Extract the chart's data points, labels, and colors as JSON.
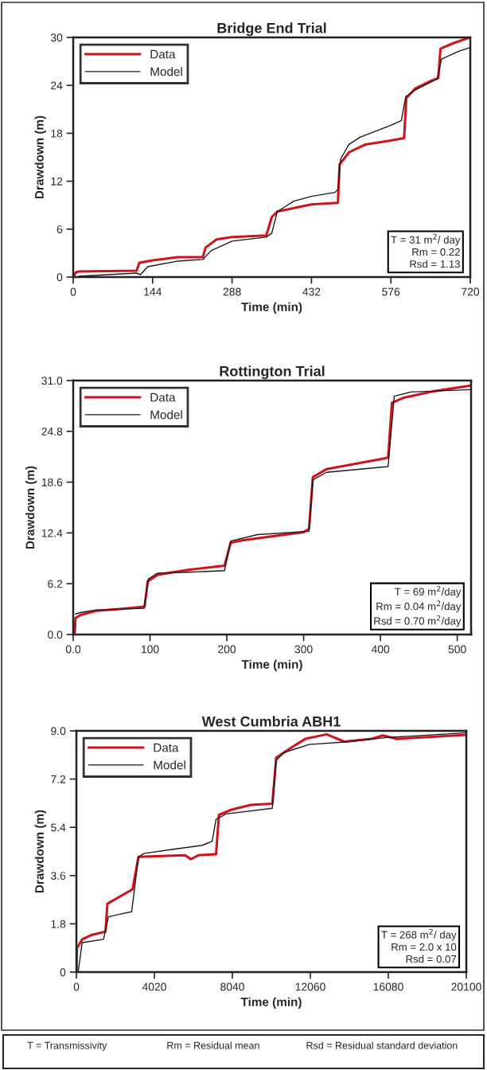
{
  "chart_data": [
    {
      "type": "line",
      "title": "Bridge End Trial",
      "xlabel": "Time (min)",
      "ylabel": "Drawdown (m)",
      "xlim": [
        0,
        720
      ],
      "xticks": [
        0,
        144,
        288,
        432,
        576,
        720
      ],
      "ylim": [
        0,
        30
      ],
      "yticks": [
        0,
        6,
        12,
        18,
        24,
        30
      ],
      "grid": false,
      "legend": "top left",
      "annotations": [
        "T = 31 m$^{2}$/ day",
        "Rm = 0.22",
        "Rsd = 1.13"
      ],
      "series": [
        {
          "name": "Data",
          "color": "#d0121b",
          "x": [
            0,
            5,
            10,
            115,
            120,
            144,
            190,
            235,
            240,
            260,
            288,
            350,
            360,
            370,
            432,
            480,
            483,
            500,
            530,
            576,
            600,
            604,
            620,
            650,
            662,
            666,
            690,
            720
          ],
          "values": [
            0,
            0.6,
            0.7,
            0.8,
            1.8,
            2.1,
            2.5,
            2.5,
            3.7,
            4.7,
            5.0,
            5.2,
            7.5,
            8.2,
            9.1,
            9.3,
            14.1,
            15.6,
            16.6,
            17.1,
            17.4,
            22.4,
            23.6,
            24.6,
            24.9,
            28.6,
            29.3,
            30.0
          ]
        },
        {
          "name": "Model",
          "color": "#1a1a1a",
          "x": [
            10,
            115,
            122,
            135,
            190,
            235,
            250,
            288,
            350,
            360,
            370,
            400,
            432,
            475,
            480,
            485,
            500,
            520,
            576,
            595,
            603,
            620,
            660,
            668,
            700,
            718
          ],
          "values": [
            0.1,
            0.5,
            0.3,
            1.3,
            2.0,
            2.2,
            3.3,
            4.5,
            5.0,
            5.5,
            8.2,
            9.5,
            10.1,
            10.6,
            11.0,
            14.8,
            16.6,
            17.5,
            19.0,
            19.6,
            22.6,
            23.4,
            24.8,
            27.3,
            28.3,
            28.7
          ]
        }
      ]
    },
    {
      "type": "line",
      "title": "Rottington Trial",
      "xlabel": "Time (min)",
      "ylabel": "Drawdown (m)",
      "xlim": [
        0,
        518
      ],
      "xticks": [
        {
          "value": 0,
          "label": "0.0"
        },
        100,
        200,
        300,
        400,
        500
      ],
      "ylim": [
        0,
        31
      ],
      "yticks": [
        {
          "value": 0,
          "label": "0.0"
        },
        6.2,
        12.4,
        18.6,
        24.8,
        {
          "value": 31,
          "label": "31.0"
        }
      ],
      "grid": false,
      "legend": "top left",
      "annotations": [
        "T = 69 m$^{2}$/day",
        "Rm = 0.04 m$^{2}$/day",
        "Rsd = 0.70 m$^{2}$/day"
      ],
      "series": [
        {
          "name": "Data",
          "color": "#d0121b",
          "x": [
            2,
            3,
            10,
            30,
            60,
            93,
            97,
            110,
            150,
            197,
            205,
            220,
            300,
            307,
            312,
            330,
            400,
            410,
            415,
            430,
            470,
            518
          ],
          "values": [
            0.2,
            2.0,
            2.4,
            2.9,
            3.1,
            3.4,
            6.5,
            7.3,
            7.9,
            8.4,
            11.2,
            11.5,
            12.5,
            12.9,
            19.2,
            20.2,
            21.4,
            21.6,
            28.3,
            28.9,
            29.7,
            30.4
          ]
        },
        {
          "name": "Model",
          "color": "#1a1a1a",
          "x": [
            3,
            10,
            30,
            92,
            98,
            110,
            150,
            197,
            205,
            240,
            307,
            312,
            330,
            410,
            418,
            440,
            518
          ],
          "values": [
            2.5,
            2.7,
            3.0,
            3.2,
            6.8,
            7.5,
            7.6,
            7.8,
            11.4,
            12.2,
            12.6,
            18.9,
            19.8,
            20.5,
            29.1,
            29.6,
            29.9
          ]
        }
      ]
    },
    {
      "type": "line",
      "title": "West Cumbria ABH1",
      "xlabel": "Time (min)",
      "ylabel": "Drawdown (m)",
      "xlim": [
        0,
        20100
      ],
      "xticks": [
        0,
        4020,
        8040,
        12060,
        16080,
        20100
      ],
      "ylim": [
        0,
        9
      ],
      "yticks": [
        0,
        1.8,
        3.6,
        5.4,
        7.2,
        {
          "value": 9,
          "label": "9.0"
        }
      ],
      "grid": false,
      "legend": "top left",
      "annotations": [
        "T = 268 m$^{2}$/ day",
        "Rm = 2.0 x 10",
        "Rsd = 0.07"
      ],
      "series": [
        {
          "name": "Data",
          "color": "#d0121b",
          "x": [
            0,
            30,
            300,
            800,
            1500,
            1600,
            2200,
            2800,
            2900,
            3200,
            5600,
            5900,
            6300,
            7200,
            7350,
            8000,
            9000,
            10100,
            10300,
            11000,
            11800,
            12900,
            13800,
            15200,
            15800,
            16500,
            20100
          ],
          "values": [
            0,
            0.9,
            1.22,
            1.39,
            1.51,
            2.55,
            2.8,
            3.05,
            3.1,
            4.3,
            4.36,
            4.21,
            4.36,
            4.4,
            5.87,
            6.06,
            6.24,
            6.28,
            8.0,
            8.34,
            8.7,
            8.87,
            8.6,
            8.7,
            8.83,
            8.7,
            8.85
          ]
        },
        {
          "name": "Model",
          "color": "#1a1a1a",
          "x": [
            100,
            300,
            1400,
            1650,
            2500,
            2850,
            3200,
            3500,
            5000,
            6500,
            7000,
            7200,
            7700,
            10100,
            10300,
            10700,
            12000,
            14000,
            16000,
            20100
          ],
          "values": [
            0.05,
            1.1,
            1.22,
            2.06,
            2.2,
            2.25,
            4.3,
            4.43,
            4.58,
            4.73,
            4.88,
            5.7,
            5.9,
            6.11,
            7.9,
            8.19,
            8.49,
            8.59,
            8.75,
            8.93
          ]
        }
      ]
    },
    {
      "type": "other",
      "annotations": [
        "T = Transmissivity",
        "Rm = Residual mean",
        "Rsd = Residual standard deviation"
      ]
    }
  ]
}
